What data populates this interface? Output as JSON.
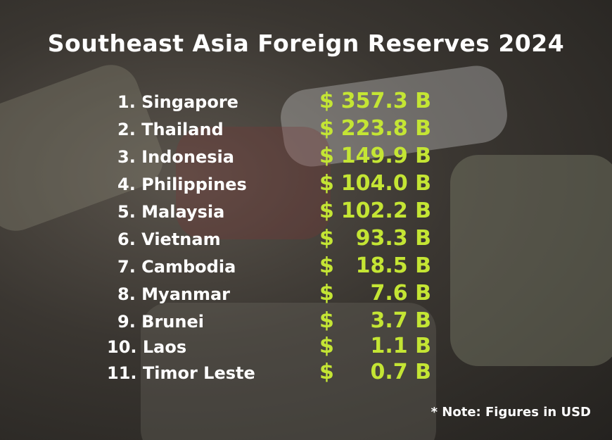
{
  "header": {
    "title": "Southeast Asia Foreign Reserves 2024"
  },
  "table": {
    "rows": [
      {
        "country": "1. Singapore",
        "currency": "$",
        "amount": "357.3 B"
      },
      {
        "country": "2. Thailand",
        "currency": "$",
        "amount": "223.8 B"
      },
      {
        "country": "3. Indonesia",
        "currency": "$",
        "amount": "149.9 B"
      },
      {
        "country": "4. Philippines",
        "currency": "$",
        "amount": "104.0 B"
      },
      {
        "country": "5. Malaysia",
        "currency": "$",
        "amount": "102.2 B"
      },
      {
        "country": "6. Vietnam",
        "currency": "$",
        "amount": "93.3 B"
      },
      {
        "country": "7. Cambodia",
        "currency": "$",
        "amount": "18.5 B"
      },
      {
        "country": "8. Myanmar",
        "currency": "$",
        "amount": "7.6 B"
      },
      {
        "country": "9. Brunei",
        "currency": "$",
        "amount": "3.7 B"
      },
      {
        "country": "10. Laos",
        "currency": "$",
        "amount": "1.1 B"
      },
      {
        "country": "11. Timor Leste",
        "currency": "$",
        "amount": "0.7 B"
      }
    ]
  },
  "footer": {
    "note": "* Note: Figures in USD"
  }
}
